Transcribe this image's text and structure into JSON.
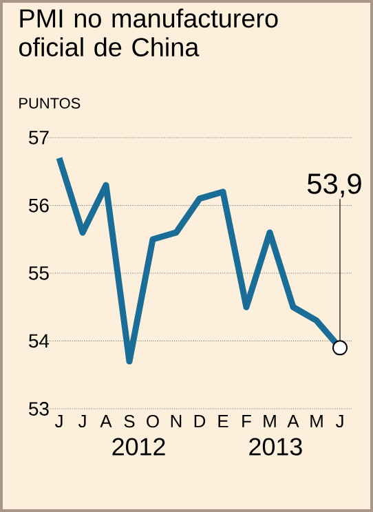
{
  "chart_data": {
    "type": "line",
    "title": "PMI no manufacturero oficial de China",
    "ylabel": "PUNTOS",
    "categories": [
      "J",
      "J",
      "A",
      "S",
      "O",
      "N",
      "D",
      "E",
      "F",
      "M",
      "A",
      "M",
      "J"
    ],
    "series": [
      {
        "color": "#1a6d96",
        "values": [
          56.7,
          55.6,
          56.3,
          53.7,
          55.5,
          55.6,
          56.1,
          56.2,
          54.5,
          55.6,
          54.5,
          54.3,
          53.9
        ],
        "value_labels": [
          null,
          null,
          null,
          null,
          null,
          null,
          null,
          null,
          null,
          null,
          null,
          null,
          "53,9"
        ]
      }
    ],
    "ylim": [
      53,
      57
    ],
    "yticks": [
      53,
      54,
      55,
      56,
      57
    ],
    "grid": "y",
    "annotations": [
      "2012",
      "2013"
    ]
  }
}
